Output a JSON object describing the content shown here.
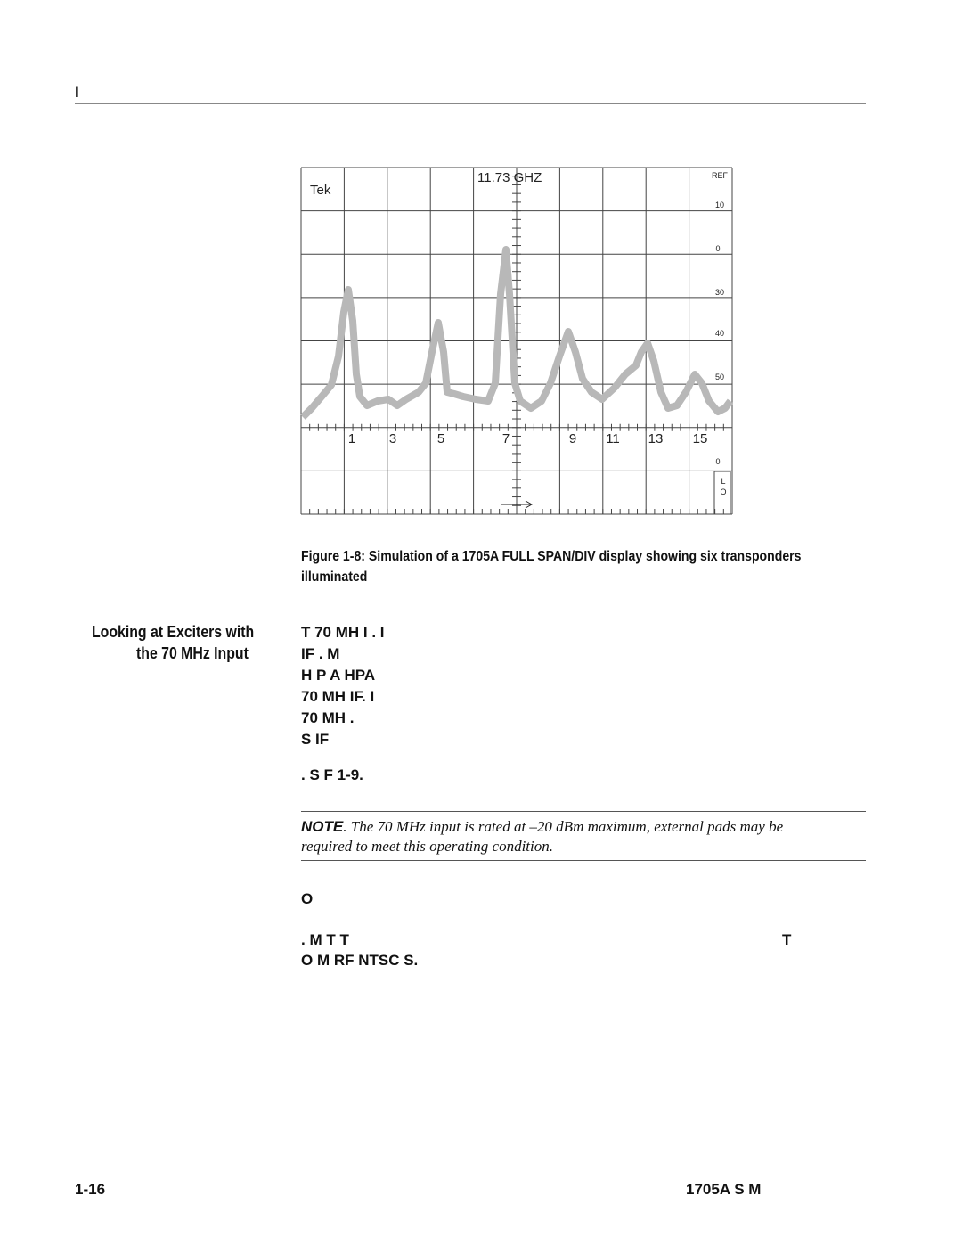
{
  "header": {
    "title": "I"
  },
  "figure": {
    "display": {
      "brand": "Tek",
      "frequency": "11.73 GHZ",
      "ref": "REF",
      "scale_labels": [
        "10",
        "0",
        "30",
        "40",
        "50"
      ],
      "channels": [
        "1",
        "3",
        "5",
        "7",
        "9",
        "11",
        "13",
        "15"
      ],
      "bottom_label": "0",
      "lo": [
        "L",
        "O"
      ]
    },
    "caption_lines": [
      "Figure 1-8: Simulation of a 1705A FULL SPAN/DIV display showing six transponders",
      "illuminated"
    ]
  },
  "section": {
    "heading_lines": [
      "Looking at Exciters with",
      "the 70 MHz Input"
    ],
    "paragraph_lines": [
      "T 70 MH I . I",
      "IF . M",
      "H P A HPA",
      "70 MH IF. I",
      "70 MH .",
      "S IF"
    ],
    "paragraph_end": ". S F 1-9.",
    "note": {
      "label": "NOTE",
      "lines": [
        ". The 70 MHz input is rated at –20 dBm maximum, external pads may be",
        "required to meet this operating condition."
      ]
    },
    "paragraph2_first": "O",
    "paragraph2_line": ". M T T",
    "paragraph2_right": "T",
    "paragraph2_last": "O M RF NTSC S."
  },
  "footer": {
    "page": "1-16",
    "title": "1705A S M"
  }
}
